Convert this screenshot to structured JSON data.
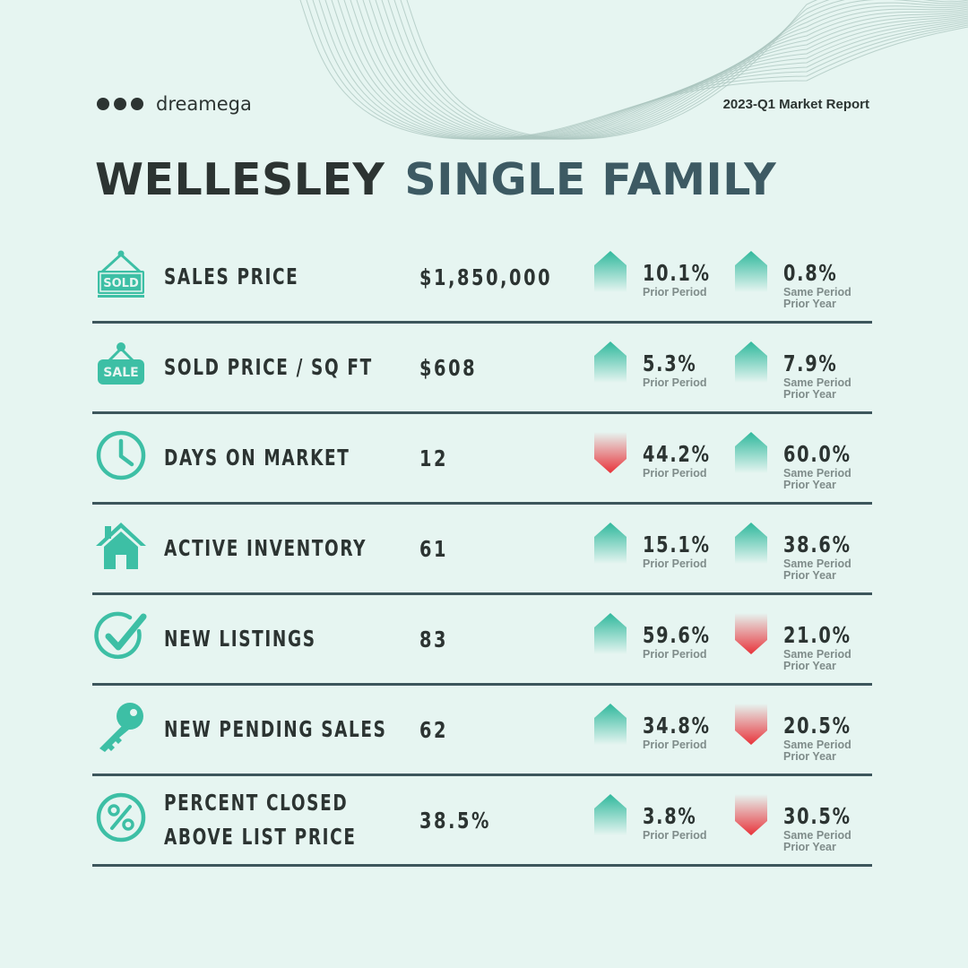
{
  "brand": {
    "name": "dreamega",
    "logo_icon": "three-dots-icon"
  },
  "report_label": "2023-Q1 Market Report",
  "title": {
    "part1": "WELLESLEY",
    "part2": "SINGLE FAMILY"
  },
  "colors": {
    "accent": "#3dbfa5",
    "up": "#2fb89c",
    "down": "#e8333a",
    "dark": "#2c3432",
    "title2": "#3d5a63",
    "divider": "#3d565c"
  },
  "rows": [
    {
      "label_lines": [
        "SALES PRICE"
      ],
      "value": "$1,850,000",
      "icon": "sold-sign-icon",
      "prior": {
        "dir": "up",
        "pct": "10.1%",
        "sub": [
          "Prior Period"
        ]
      },
      "year": {
        "dir": "up",
        "pct": "0.8%",
        "sub": [
          "Same Period",
          "Prior Year"
        ]
      }
    },
    {
      "label_lines": [
        "SOLD PRICE / SQ FT"
      ],
      "value": "$608",
      "icon": "sale-tag-icon",
      "prior": {
        "dir": "up",
        "pct": "5.3%",
        "sub": [
          "Prior Period"
        ]
      },
      "year": {
        "dir": "up",
        "pct": "7.9%",
        "sub": [
          "Same Period",
          "Prior Year"
        ]
      }
    },
    {
      "label_lines": [
        "DAYS ON MARKET"
      ],
      "value": "12",
      "icon": "clock-icon",
      "prior": {
        "dir": "down",
        "pct": "44.2%",
        "sub": [
          "Prior Period"
        ]
      },
      "year": {
        "dir": "up",
        "pct": "60.0%",
        "sub": [
          "Same Period",
          "Prior Year"
        ]
      }
    },
    {
      "label_lines": [
        "ACTIVE INVENTORY"
      ],
      "value": "61",
      "icon": "house-icon",
      "prior": {
        "dir": "up",
        "pct": "15.1%",
        "sub": [
          "Prior Period"
        ]
      },
      "year": {
        "dir": "up",
        "pct": "38.6%",
        "sub": [
          "Same Period",
          "Prior Year"
        ]
      }
    },
    {
      "label_lines": [
        "NEW LISTINGS"
      ],
      "value": "83",
      "icon": "checkmark-circle-icon",
      "prior": {
        "dir": "up",
        "pct": "59.6%",
        "sub": [
          "Prior Period"
        ]
      },
      "year": {
        "dir": "down",
        "pct": "21.0%",
        "sub": [
          "Same Period",
          "Prior Year"
        ]
      }
    },
    {
      "label_lines": [
        "NEW PENDING SALES"
      ],
      "value": "62",
      "icon": "key-icon",
      "prior": {
        "dir": "up",
        "pct": "34.8%",
        "sub": [
          "Prior Period"
        ]
      },
      "year": {
        "dir": "down",
        "pct": "20.5%",
        "sub": [
          "Same Period",
          "Prior Year"
        ]
      }
    },
    {
      "label_lines": [
        "PERCENT CLOSED",
        "ABOVE LIST PRICE"
      ],
      "value": "38.5%",
      "icon": "percent-circle-icon",
      "prior": {
        "dir": "up",
        "pct": "3.8%",
        "sub": [
          "Prior Period"
        ]
      },
      "year": {
        "dir": "down",
        "pct": "30.5%",
        "sub": [
          "Same Period",
          "Prior Year"
        ]
      }
    }
  ]
}
